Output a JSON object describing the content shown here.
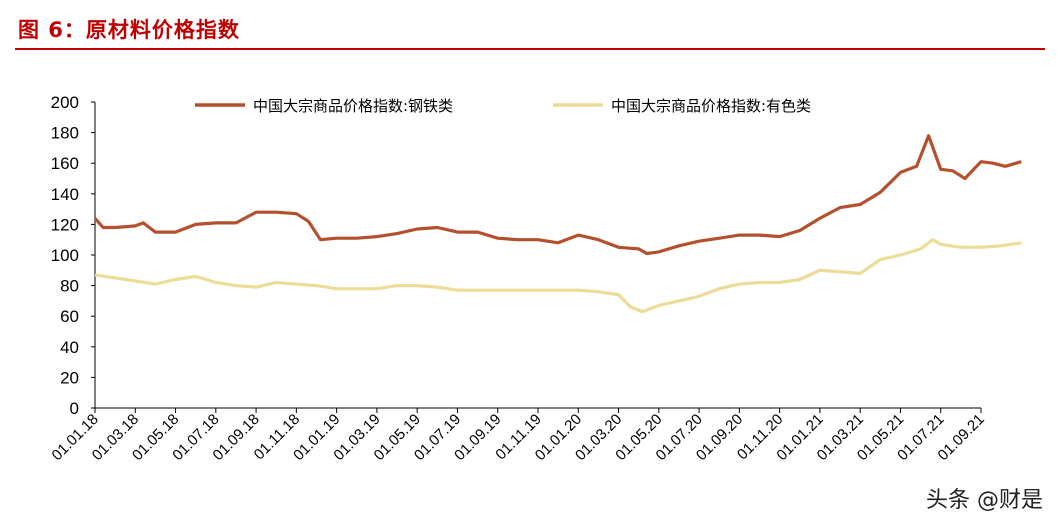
{
  "figure": {
    "title": "图 6：原材料价格指数",
    "watermark": "头条 @财是"
  },
  "colors": {
    "title": "#c00000",
    "steel": "#b5502f",
    "nonferrous": "#ecdc96"
  },
  "chart_data": {
    "type": "line",
    "title": "",
    "xlabel": "",
    "ylabel": "",
    "ylim": [
      0,
      200
    ],
    "yticks": [
      0,
      20,
      40,
      60,
      80,
      100,
      120,
      140,
      160,
      180,
      200
    ],
    "x_tick_labels": [
      "01.01.18",
      "01.03.18",
      "01.05.18",
      "01.07.18",
      "01.09.18",
      "01.11.18",
      "01.01.19",
      "01.03.19",
      "01.05.19",
      "01.07.19",
      "01.09.19",
      "01.11.19",
      "01.01.20",
      "01.03.20",
      "01.05.20",
      "01.07.20",
      "01.09.20",
      "01.11.20",
      "01.01.21",
      "01.03.21",
      "01.05.21",
      "01.07.21",
      "01.09.21"
    ],
    "grid": false,
    "legend": "top",
    "series": [
      {
        "name": "中国大宗商品价格指数:钢铁类",
        "points": [
          [
            0,
            124
          ],
          [
            0.2,
            118
          ],
          [
            0.5,
            118
          ],
          [
            1,
            119
          ],
          [
            1.2,
            121
          ],
          [
            1.5,
            115
          ],
          [
            2,
            115
          ],
          [
            2.5,
            120
          ],
          [
            3,
            121
          ],
          [
            3.5,
            121
          ],
          [
            4,
            128
          ],
          [
            4.5,
            128
          ],
          [
            5,
            127
          ],
          [
            5.3,
            122
          ],
          [
            5.6,
            110
          ],
          [
            6,
            111
          ],
          [
            6.5,
            111
          ],
          [
            7,
            112
          ],
          [
            7.5,
            114
          ],
          [
            8,
            117
          ],
          [
            8.5,
            118
          ],
          [
            9,
            115
          ],
          [
            9.5,
            115
          ],
          [
            10,
            111
          ],
          [
            10.5,
            110
          ],
          [
            11,
            110
          ],
          [
            11.5,
            108
          ],
          [
            12,
            113
          ],
          [
            12.5,
            110
          ],
          [
            13,
            105
          ],
          [
            13.5,
            104
          ],
          [
            13.7,
            101
          ],
          [
            14,
            102
          ],
          [
            14.5,
            106
          ],
          [
            15,
            109
          ],
          [
            15.5,
            111
          ],
          [
            16,
            113
          ],
          [
            16.5,
            113
          ],
          [
            17,
            112
          ],
          [
            17.5,
            116
          ],
          [
            18,
            124
          ],
          [
            18.5,
            131
          ],
          [
            19,
            133
          ],
          [
            19.5,
            141
          ],
          [
            20,
            154
          ],
          [
            20.4,
            158
          ],
          [
            20.7,
            178
          ],
          [
            21,
            156
          ],
          [
            21.3,
            155
          ],
          [
            21.6,
            150
          ],
          [
            22,
            161
          ],
          [
            22.3,
            160
          ],
          [
            22.6,
            158
          ],
          [
            23,
            161
          ]
        ]
      },
      {
        "name": "中国大宗商品价格指数:有色类",
        "points": [
          [
            0,
            87
          ],
          [
            0.5,
            85
          ],
          [
            1,
            83
          ],
          [
            1.5,
            81
          ],
          [
            2,
            84
          ],
          [
            2.5,
            86
          ],
          [
            3,
            82
          ],
          [
            3.5,
            80
          ],
          [
            4,
            79
          ],
          [
            4.5,
            82
          ],
          [
            5,
            81
          ],
          [
            5.5,
            80
          ],
          [
            6,
            78
          ],
          [
            6.5,
            78
          ],
          [
            7,
            78
          ],
          [
            7.5,
            80
          ],
          [
            8,
            80
          ],
          [
            8.5,
            79
          ],
          [
            9,
            77
          ],
          [
            9.5,
            77
          ],
          [
            10,
            77
          ],
          [
            10.5,
            77
          ],
          [
            11,
            77
          ],
          [
            11.5,
            77
          ],
          [
            12,
            77
          ],
          [
            12.5,
            76
          ],
          [
            13,
            74
          ],
          [
            13.3,
            66
          ],
          [
            13.6,
            63
          ],
          [
            14,
            67
          ],
          [
            14.5,
            70
          ],
          [
            15,
            73
          ],
          [
            15.5,
            78
          ],
          [
            16,
            81
          ],
          [
            16.5,
            82
          ],
          [
            17,
            82
          ],
          [
            17.5,
            84
          ],
          [
            18,
            90
          ],
          [
            18.5,
            89
          ],
          [
            19,
            88
          ],
          [
            19.5,
            97
          ],
          [
            20,
            100
          ],
          [
            20.5,
            104
          ],
          [
            20.8,
            110
          ],
          [
            21,
            107
          ],
          [
            21.5,
            105
          ],
          [
            22,
            105
          ],
          [
            22.5,
            106
          ],
          [
            23,
            108
          ]
        ]
      }
    ]
  }
}
